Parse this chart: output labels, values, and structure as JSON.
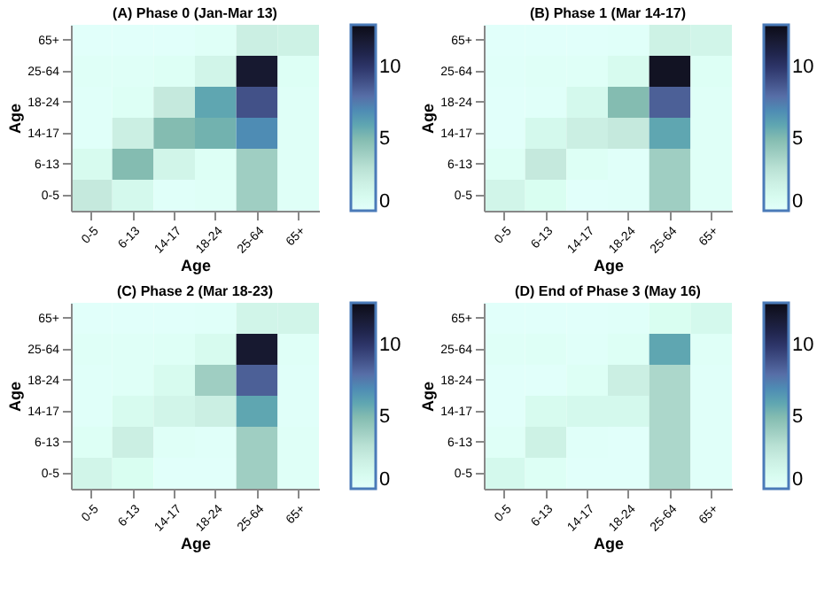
{
  "chart_data": [
    {
      "type": "heatmap",
      "title": "(A) Phase 0 (Jan-Mar 13)",
      "xlabel": "Age",
      "ylabel": "Age",
      "categories": [
        "0-5",
        "6-13",
        "14-17",
        "18-24",
        "25-64",
        "65+"
      ],
      "y_categories": [
        "65+",
        "25-64",
        "18-24",
        "14-17",
        "6-13",
        "0-5"
      ],
      "cells": [
        [
          0.1,
          0.1,
          0.1,
          0.3,
          2,
          1.8
        ],
        [
          0.3,
          0.3,
          0.5,
          1.5,
          12,
          0.5
        ],
        [
          0.2,
          0.5,
          2.5,
          6,
          9,
          0.3
        ],
        [
          0.2,
          2,
          5,
          5.5,
          7,
          0.3
        ],
        [
          1,
          5,
          1.5,
          0.5,
          4,
          0.3
        ],
        [
          2.5,
          1.2,
          0.2,
          0.3,
          4,
          0.3
        ]
      ],
      "clim": [
        0,
        13
      ],
      "cticks": [
        0,
        5,
        10
      ]
    },
    {
      "type": "heatmap",
      "title": "(B) Phase 1 (Mar 14-17)",
      "xlabel": "Age",
      "ylabel": "Age",
      "categories": [
        "0-5",
        "6-13",
        "14-17",
        "18-24",
        "25-64",
        "65+"
      ],
      "y_categories": [
        "65+",
        "25-64",
        "18-24",
        "14-17",
        "6-13",
        "0-5"
      ],
      "cells": [
        [
          0.1,
          0.1,
          0.1,
          0.2,
          1.8,
          1.5
        ],
        [
          0.2,
          0.3,
          0.3,
          1,
          12.5,
          0.5
        ],
        [
          0.1,
          0.2,
          1.2,
          5,
          8.5,
          0.3
        ],
        [
          0.1,
          1.2,
          2,
          2.5,
          6,
          0.3
        ],
        [
          0.5,
          2.5,
          0.5,
          0.2,
          4,
          0.3
        ],
        [
          1.5,
          0.8,
          0.1,
          0.2,
          4,
          0.3
        ]
      ],
      "clim": [
        0,
        13
      ],
      "cticks": [
        0,
        5,
        10
      ]
    },
    {
      "type": "heatmap",
      "title": "(C) Phase 2 (Mar 18-23)",
      "xlabel": "Age",
      "ylabel": "Age",
      "categories": [
        "0-5",
        "6-13",
        "14-17",
        "18-24",
        "25-64",
        "65+"
      ],
      "y_categories": [
        "65+",
        "25-64",
        "18-24",
        "14-17",
        "6-13",
        "0-5"
      ],
      "cells": [
        [
          0.1,
          0.1,
          0.1,
          0.2,
          1.5,
          1.5
        ],
        [
          0.3,
          0.3,
          0.4,
          1,
          12,
          0.3
        ],
        [
          0.2,
          0.3,
          1,
          4,
          8.5,
          0.2
        ],
        [
          0.2,
          1,
          1.5,
          2,
          6,
          0.2
        ],
        [
          0.5,
          2,
          0.3,
          0.2,
          4,
          0.3
        ],
        [
          1.5,
          0.8,
          0.1,
          0.1,
          4,
          0.3
        ]
      ],
      "clim": [
        0,
        13
      ],
      "cticks": [
        0,
        5,
        10
      ]
    },
    {
      "type": "heatmap",
      "title": "(D) End of Phase 3 (May 16)",
      "xlabel": "Age",
      "ylabel": "Age",
      "categories": [
        "0-5",
        "6-13",
        "14-17",
        "18-24",
        "25-64",
        "65+"
      ],
      "y_categories": [
        "65+",
        "25-64",
        "18-24",
        "14-17",
        "6-13",
        "0-5"
      ],
      "cells": [
        [
          0.1,
          0.1,
          0.1,
          0.2,
          0.8,
          1.2
        ],
        [
          0.3,
          0.4,
          0.2,
          0.5,
          6,
          0.3
        ],
        [
          0.1,
          0.1,
          0.5,
          2,
          3.5,
          0.2
        ],
        [
          0.1,
          1,
          1.2,
          1.2,
          3.5,
          0.2
        ],
        [
          0.3,
          1.8,
          0.2,
          0.1,
          3.5,
          0.2
        ],
        [
          1.2,
          0.5,
          0.1,
          0.1,
          3.5,
          0.2
        ]
      ],
      "clim": [
        0,
        13
      ],
      "cticks": [
        0,
        5,
        10
      ]
    }
  ]
}
